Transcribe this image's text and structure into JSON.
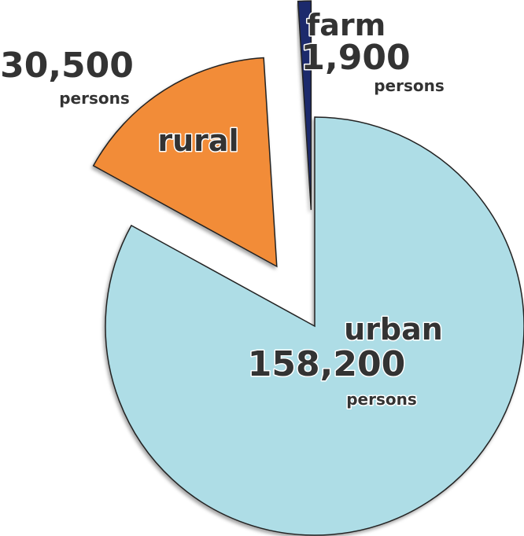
{
  "chart_data": {
    "type": "pie",
    "categories": [
      "urban",
      "rural",
      "farm"
    ],
    "values": [
      158200,
      30500,
      1900
    ],
    "value_labels": [
      "158,200",
      "30,500",
      "1,900"
    ],
    "colors": [
      "#aedde6",
      "#f28c38",
      "#1a2a6c"
    ],
    "unit": "persons"
  }
}
